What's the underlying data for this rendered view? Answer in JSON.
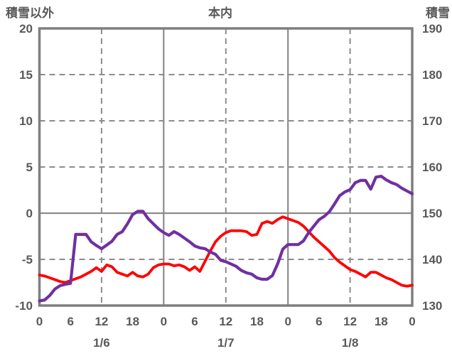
{
  "colors": {
    "text": "#595959",
    "frame": "#7F7F7F",
    "grid": "#8C8C8C",
    "series_red": "#FF0000",
    "series_purple": "#7030A0",
    "background": "#FFFFFF"
  },
  "chart_data": {
    "type": "line",
    "title": "本内",
    "left_axis": {
      "title": "積雪以外",
      "min": -10,
      "max": 20,
      "ticks": [
        20,
        15,
        10,
        5,
        0,
        -5,
        -10
      ],
      "solid_gridlines_at": [
        0
      ],
      "dashed_gridlines_at": [
        15,
        10,
        5,
        -5
      ]
    },
    "right_axis": {
      "title": "積雪",
      "min": 130,
      "max": 190,
      "ticks": [
        190,
        180,
        170,
        160,
        150,
        140,
        130
      ]
    },
    "x_axis": {
      "unit": "hour",
      "min": 0,
      "max": 72,
      "tick_interval_hours": 6,
      "tick_labels": [
        "0",
        "6",
        "12",
        "18",
        "0",
        "6",
        "12",
        "18",
        "0",
        "6",
        "12",
        "18",
        "0"
      ],
      "date_labels": [
        {
          "label": "1/6",
          "hour": 12
        },
        {
          "label": "1/7",
          "hour": 36
        },
        {
          "label": "1/8",
          "hour": 60
        }
      ],
      "solid_gridlines_at_hours": [
        24,
        48
      ],
      "dashed_gridlines_at_hours": [
        12,
        36,
        60
      ]
    },
    "grid": true,
    "legend": "none",
    "series": [
      {
        "name": "積雪以外",
        "axis": "left",
        "color": "#FF0000",
        "stroke_width": 3.8,
        "values": [
          -6.7,
          -6.8,
          -7.0,
          -7.2,
          -7.4,
          -7.5,
          -7.3,
          -7.1,
          -6.9,
          -6.6,
          -6.3,
          -5.9,
          -6.3,
          -5.6,
          -5.8,
          -6.4,
          -6.6,
          -6.8,
          -6.4,
          -6.8,
          -6.9,
          -6.6,
          -5.9,
          -5.6,
          -5.5,
          -5.5,
          -5.7,
          -5.6,
          -5.8,
          -6.2,
          -5.8,
          -6.3,
          -5.2,
          -4.1,
          -3.1,
          -2.5,
          -2.1,
          -1.9,
          -1.9,
          -1.9,
          -2.0,
          -2.4,
          -2.3,
          -1.1,
          -0.9,
          -1.1,
          -0.7,
          -0.4,
          -0.6,
          -0.8,
          -1.0,
          -1.4,
          -2.0,
          -2.6,
          -3.1,
          -3.6,
          -4.1,
          -4.8,
          -5.3,
          -5.7,
          -6.1,
          -6.3,
          -6.6,
          -6.9,
          -6.4,
          -6.4,
          -6.7,
          -7.0,
          -7.2,
          -7.5,
          -7.8,
          -7.9,
          -7.8
        ]
      },
      {
        "name": "積雪",
        "axis": "right",
        "color": "#7030A0",
        "stroke_width": 4.2,
        "values": [
          131.0,
          131.2,
          132.2,
          133.6,
          134.3,
          134.6,
          134.8,
          145.4,
          145.4,
          145.4,
          143.8,
          143.0,
          142.3,
          143.1,
          143.9,
          145.4,
          146.0,
          147.7,
          149.7,
          150.4,
          150.4,
          148.8,
          147.7,
          146.6,
          145.8,
          145.2,
          146.0,
          145.4,
          144.6,
          143.8,
          142.9,
          142.5,
          142.3,
          141.6,
          141.1,
          139.8,
          139.5,
          139.0,
          138.5,
          137.6,
          137.1,
          136.8,
          136.0,
          135.7,
          135.7,
          136.5,
          139.0,
          142.2,
          143.2,
          143.2,
          143.2,
          144.0,
          145.8,
          147.2,
          148.6,
          149.3,
          150.3,
          152.0,
          153.8,
          154.6,
          155.1,
          156.6,
          157.1,
          157.1,
          155.2,
          157.8,
          158.0,
          157.2,
          156.6,
          156.2,
          155.4,
          154.8,
          154.2
        ]
      }
    ]
  }
}
